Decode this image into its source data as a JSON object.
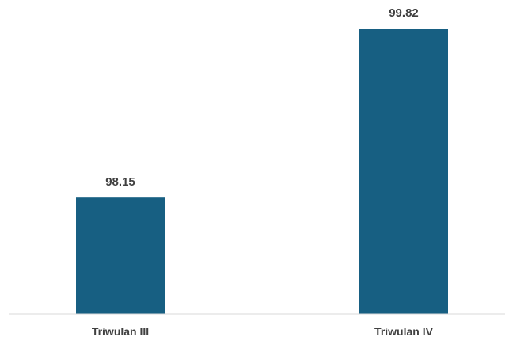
{
  "chart_data": {
    "type": "bar",
    "categories": [
      "Triwulan III",
      "Triwulan IV"
    ],
    "series": [
      {
        "values": [
          98.15,
          99.82
        ],
        "color": "#175F82"
      }
    ],
    "data_labels": [
      "98.15",
      "99.82"
    ],
    "title": "",
    "xlabel": "",
    "ylabel": "",
    "ylim": [
      97.0,
      100.0
    ],
    "grid": false,
    "legend": "none",
    "y_axis_visible": false
  },
  "colors": {
    "bar": "#175F82",
    "axis": "#D9D9D9",
    "label_text": "#404040"
  }
}
